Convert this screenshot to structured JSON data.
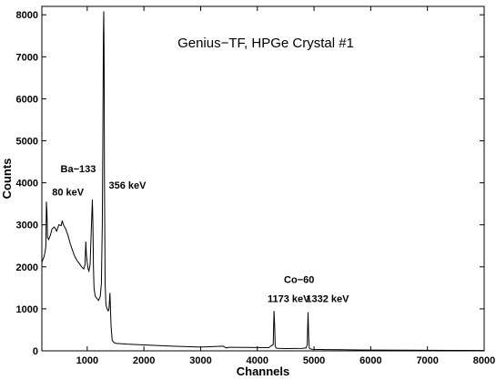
{
  "chart_data": {
    "type": "line",
    "title": "Genius−TF, HPGe Crystal #1",
    "xlabel": "Channels",
    "ylabel": "Counts",
    "xlim": [
      200,
      8000
    ],
    "ylim": [
      0,
      8200
    ],
    "xticks": [
      1000,
      2000,
      3000,
      4000,
      5000,
      6000,
      7000,
      8000
    ],
    "yticks": [
      0,
      1000,
      2000,
      3000,
      4000,
      5000,
      6000,
      7000,
      8000
    ],
    "grid": false,
    "series": [
      {
        "x": [
          200,
          220,
          240,
          260,
          270,
          280,
          290,
          300,
          320,
          350,
          380,
          420,
          460,
          500,
          540,
          560,
          580,
          620,
          660,
          700,
          740,
          780,
          820,
          860,
          900,
          940,
          960,
          975,
          985,
          1000,
          1015,
          1030,
          1050,
          1075,
          1090,
          1100,
          1110,
          1120,
          1140,
          1170,
          1200,
          1230,
          1250,
          1265,
          1275,
          1285,
          1292,
          1298,
          1305,
          1315,
          1330,
          1350,
          1370,
          1385,
          1400,
          1410,
          1420,
          1440,
          1470,
          1500,
          1700,
          2000,
          2500,
          3000,
          3400,
          3450,
          3500,
          3800,
          4200,
          4280,
          4295,
          4305,
          4315,
          4330,
          4360,
          4500,
          4800,
          4860,
          4880,
          4895,
          4905,
          4915,
          4930,
          4960,
          5000,
          5200,
          5500,
          6000,
          6500,
          7000,
          7500,
          8000
        ],
        "values": [
          2100,
          2180,
          2250,
          2380,
          2500,
          3550,
          3300,
          2700,
          2650,
          2750,
          2900,
          2950,
          2850,
          3000,
          2980,
          3100,
          3000,
          2900,
          2750,
          2550,
          2400,
          2250,
          2150,
          2080,
          2000,
          1950,
          2050,
          2600,
          2300,
          2100,
          1950,
          1900,
          2050,
          3000,
          3600,
          3000,
          2000,
          1500,
          1300,
          1250,
          1200,
          1300,
          1600,
          3000,
          5000,
          7500,
          8080,
          7000,
          4000,
          1600,
          1100,
          1000,
          950,
          1000,
          1380,
          1000,
          600,
          250,
          200,
          180,
          160,
          140,
          110,
          90,
          110,
          70,
          85,
          80,
          75,
          150,
          950,
          600,
          120,
          70,
          60,
          55,
          60,
          70,
          150,
          920,
          300,
          70,
          50,
          40,
          35,
          30,
          25,
          20,
          15,
          12,
          10,
          8
        ]
      }
    ],
    "annotations": [
      {
        "text": "Ba−133",
        "x": 530,
        "y": 4250
      },
      {
        "text": "80 keV",
        "x": 380,
        "y": 3700
      },
      {
        "text": "356 keV",
        "x": 1380,
        "y": 3860
      },
      {
        "text": "Co−60",
        "x": 4470,
        "y": 1620
      },
      {
        "text": "1173 keV",
        "x": 4180,
        "y": 1160
      },
      {
        "text": "1332 keV",
        "x": 4860,
        "y": 1160
      }
    ]
  }
}
